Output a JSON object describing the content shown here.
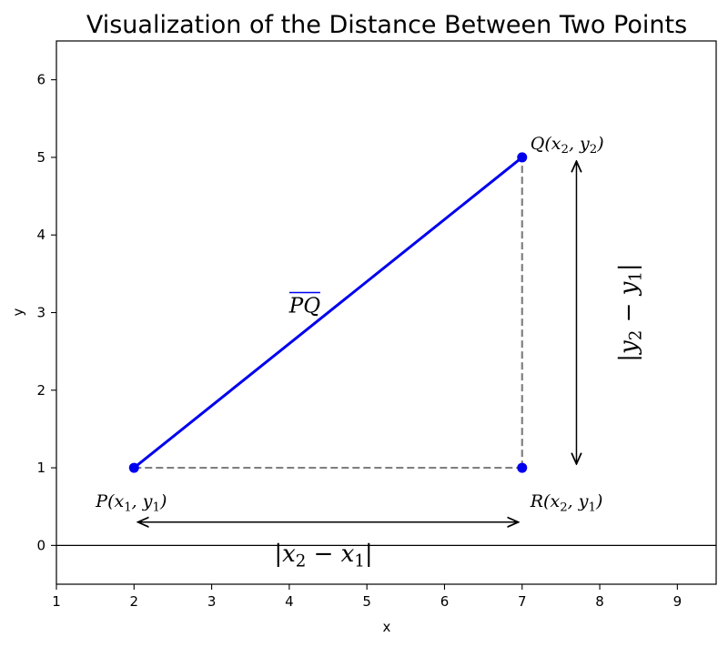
{
  "chart_data": {
    "type": "line",
    "title": "Visualization of the Distance Between Two Points",
    "xlabel": "x",
    "ylabel": "y",
    "xlim": [
      1,
      9.5
    ],
    "ylim": [
      -0.5,
      6.5
    ],
    "xticks": [
      1,
      2,
      3,
      4,
      5,
      6,
      7,
      8,
      9
    ],
    "yticks": [
      0,
      1,
      2,
      3,
      4,
      5,
      6
    ],
    "grid": false,
    "colors": {
      "segment": "#0000ee",
      "points": "#0000ee",
      "guides": "#808080",
      "arrows": "#000000",
      "baseline": "#000000"
    },
    "points": [
      {
        "x": 2,
        "y": 1,
        "label": "P(x₁, y₁)"
      },
      {
        "x": 7,
        "y": 5,
        "label": "Q(x₂, y₂)"
      },
      {
        "x": 7,
        "y": 1,
        "label": "R(x₂, y₁)"
      }
    ],
    "segment": {
      "from": [
        2,
        1
      ],
      "to": [
        7,
        5
      ],
      "label": "PQ"
    },
    "horizontal_baseline_y": 0,
    "guides": [
      {
        "from": [
          2,
          1
        ],
        "to": [
          7,
          1
        ]
      },
      {
        "from": [
          7,
          1
        ],
        "to": [
          7,
          5
        ]
      }
    ],
    "arrows": [
      {
        "from": [
          2.05,
          0.3
        ],
        "to": [
          6.95,
          0.3
        ],
        "label": "|x₂ − x₁|",
        "label_at": [
          4.5,
          -0.1
        ]
      },
      {
        "from": [
          7.7,
          1.05
        ],
        "to": [
          7.7,
          4.95
        ],
        "label": "|y₂ − y₁|",
        "label_at": [
          8.35,
          3
        ]
      }
    ]
  }
}
